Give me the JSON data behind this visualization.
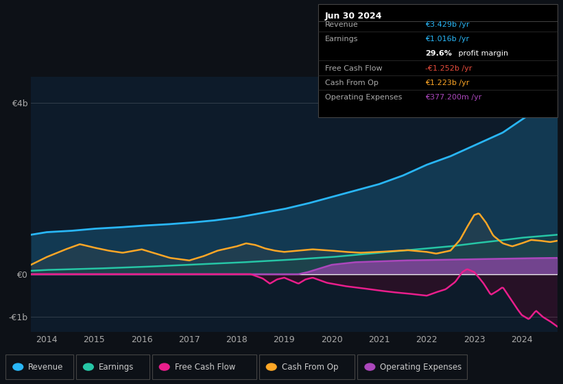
{
  "bg_color": "#0d1117",
  "plot_bg_color": "#0d1b2a",
  "title": "Jun 30 2024",
  "colors": {
    "revenue": "#29b6f6",
    "earnings": "#26c6a6",
    "free_cash_flow": "#e91e8c",
    "cash_from_op": "#ffa726",
    "operating_expenses": "#ab47bc"
  },
  "ylim": [
    -1350000000.0,
    4600000000.0
  ],
  "ytick_positions": [
    -1000000000.0,
    0,
    4000000000.0
  ],
  "ytick_labels": [
    "-€1b",
    "€0",
    "€4b"
  ],
  "xlim_start": 2013.67,
  "xlim_end": 2024.75,
  "xticks": [
    2014,
    2015,
    2016,
    2017,
    2018,
    2019,
    2020,
    2021,
    2022,
    2023,
    2024
  ],
  "legend_items": [
    {
      "label": "Revenue",
      "color": "#29b6f6"
    },
    {
      "label": "Earnings",
      "color": "#26c6a6"
    },
    {
      "label": "Free Cash Flow",
      "color": "#e91e8c"
    },
    {
      "label": "Cash From Op",
      "color": "#ffa726"
    },
    {
      "label": "Operating Expenses",
      "color": "#ab47bc"
    }
  ],
  "infobox": {
    "title": "Jun 30 2024",
    "rows": [
      {
        "label": "Revenue",
        "value": "€3.429b /yr",
        "color": "#29b6f6",
        "sep": true
      },
      {
        "label": "Earnings",
        "value": "€1.016b /yr",
        "color": "#29b6f6",
        "sep": false
      },
      {
        "label": "",
        "value": "29.6% profit margin",
        "color": "#ffffff",
        "sep": true,
        "bold_pct": true
      },
      {
        "label": "Free Cash Flow",
        "value": "-€1.252b /yr",
        "color": "#e74c3c",
        "sep": true
      },
      {
        "label": "Cash From Op",
        "value": "€1.223b /yr",
        "color": "#ffa726",
        "sep": true
      },
      {
        "label": "Operating Expenses",
        "value": "€377.200m /yr",
        "color": "#ab47bc",
        "sep": false
      }
    ]
  }
}
